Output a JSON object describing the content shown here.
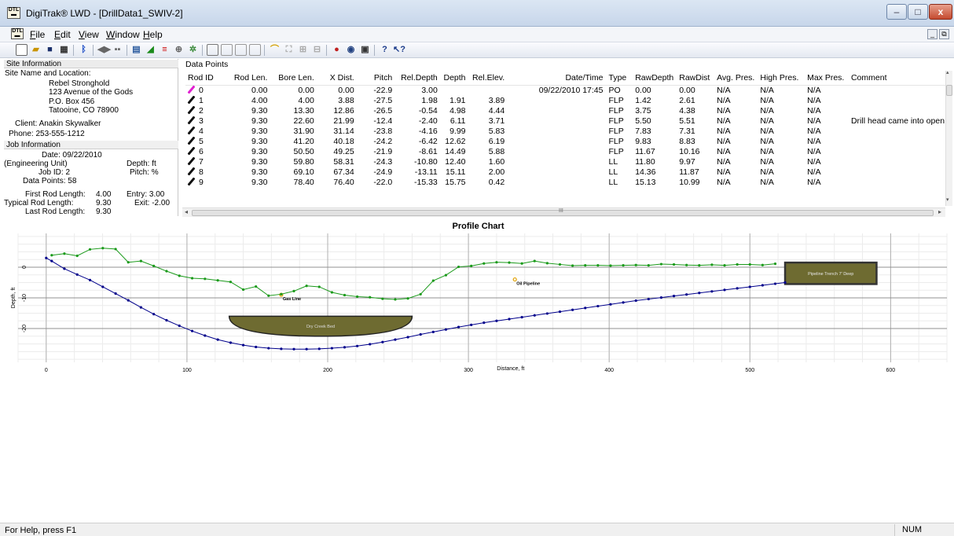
{
  "window": {
    "title": "DigiTrak® LWD - [DrillData1_SWIV-2]",
    "minimize": "–",
    "maximize": "□",
    "close": "x"
  },
  "menu": [
    "File",
    "Edit",
    "View",
    "Window",
    "Help"
  ],
  "menu_underline": [
    "F",
    "E",
    "V",
    "W",
    "H"
  ],
  "mdi": {
    "minimize": "_",
    "restore": "⧉"
  },
  "toolbar": {
    "icons": [
      "new-icon",
      "open-icon",
      "save-icon",
      "grid-icon",
      "bluetooth-icon",
      "profile-left-icon",
      "profile-right-icon",
      "report-icon",
      "plot-icon",
      "bar-icon",
      "target-icon",
      "settings-icon",
      "panel1-icon",
      "panel2-icon",
      "panel3-icon",
      "panel4-icon",
      "arch-icon",
      "zoom-fit-icon",
      "zoom-in-icon",
      "zoom-out-icon",
      "print-preview-icon",
      "print-setup-icon",
      "print-icon",
      "help-icon",
      "context-help-icon"
    ]
  },
  "site": {
    "section_label": "Site Information",
    "name_label": "Site Name and Location:",
    "name": "Rebel Stronghold",
    "address1": "123 Avenue of the Gods",
    "address2": "P.O. Box 456",
    "address3": "Tatooine, CO 78900",
    "client": "Client:  Anakin Skywalker",
    "phone": "Phone:  253-555-1212"
  },
  "job": {
    "section_label": "Job Information",
    "date": "Date:  09/22/2010",
    "unit": "(Engineering Unit)",
    "depth_unit": "Depth:  ft",
    "job_id": "Job ID:  2",
    "pitch_unit": "Pitch:  %",
    "data_points": "Data Points:  58",
    "first_rod_label": "First Rod Length:",
    "first_rod": "4.00",
    "entry": "Entry: 3.00",
    "typical_rod_label": "Typical Rod Length:",
    "typical_rod": "9.30",
    "exit": "Exit: -2.00",
    "last_rod_label": "Last Rod Length:",
    "last_rod": "9.30"
  },
  "data_points": {
    "title": "Data Points",
    "columns": [
      "Rod ID",
      "Rod Len.",
      "Bore Len.",
      "X Dist.",
      "Pitch",
      "Rel.Depth",
      "Depth",
      "Rel.Elev.",
      "Date/Time",
      "Type",
      "RawDepth",
      "RawDist",
      "Avg. Pres.",
      "High Pres.",
      "Max Pres.",
      "Comment"
    ],
    "rows": [
      [
        "0",
        "0.00",
        "0.00",
        "0.00",
        "-22.9",
        "3.00",
        "",
        "",
        "09/22/2010 17:45",
        "PO",
        "0.00",
        "0.00",
        "N/A",
        "N/A",
        "N/A",
        ""
      ],
      [
        "1",
        "4.00",
        "4.00",
        "3.88",
        "-27.5",
        "1.98",
        "1.91",
        "3.89",
        "",
        "FLP",
        "1.42",
        "2.61",
        "N/A",
        "N/A",
        "N/A",
        ""
      ],
      [
        "2",
        "9.30",
        "13.30",
        "12.86",
        "-26.5",
        "-0.54",
        "4.98",
        "4.44",
        "",
        "FLP",
        "3.75",
        "4.38",
        "N/A",
        "N/A",
        "N/A",
        ""
      ],
      [
        "3",
        "9.30",
        "22.60",
        "21.99",
        "-12.4",
        "-2.40",
        "6.11",
        "3.71",
        "",
        "FLP",
        "5.50",
        "5.51",
        "N/A",
        "N/A",
        "N/A",
        "Drill head came into open ."
      ],
      [
        "4",
        "9.30",
        "31.90",
        "31.14",
        "-23.8",
        "-4.16",
        "9.99",
        "5.83",
        "",
        "FLP",
        "7.83",
        "7.31",
        "N/A",
        "N/A",
        "N/A",
        ""
      ],
      [
        "5",
        "9.30",
        "41.20",
        "40.18",
        "-24.2",
        "-6.42",
        "12.62",
        "6.19",
        "",
        "FLP",
        "9.83",
        "8.83",
        "N/A",
        "N/A",
        "N/A",
        ""
      ],
      [
        "6",
        "9.30",
        "50.50",
        "49.25",
        "-21.9",
        "-8.61",
        "14.49",
        "5.88",
        "",
        "FLP",
        "11.67",
        "10.16",
        "N/A",
        "N/A",
        "N/A",
        ""
      ],
      [
        "7",
        "9.30",
        "59.80",
        "58.31",
        "-24.3",
        "-10.80",
        "12.40",
        "1.60",
        "",
        "LL",
        "11.80",
        "9.97",
        "N/A",
        "N/A",
        "N/A",
        ""
      ],
      [
        "8",
        "9.30",
        "69.10",
        "67.34",
        "-24.9",
        "-13.11",
        "15.11",
        "2.00",
        "",
        "LL",
        "14.36",
        "11.87",
        "N/A",
        "N/A",
        "N/A",
        ""
      ],
      [
        "9",
        "9.30",
        "78.40",
        "76.40",
        "-22.0",
        "-15.33",
        "15.75",
        "0.42",
        "",
        "LL",
        "15.13",
        "10.99",
        "N/A",
        "N/A",
        "N/A",
        ""
      ]
    ],
    "scroll_left": "◂",
    "scroll_right": "▸",
    "scroll_up": "▴",
    "scroll_down": "▾",
    "scroll_grip": "III"
  },
  "chart_data": {
    "type": "line",
    "title": "Profile Chart",
    "xlabel": "Distance, ft",
    "ylabel": "Depth, ft",
    "xlim": [
      -20,
      640
    ],
    "ylim": [
      -31,
      11
    ],
    "xticks": [
      0,
      100,
      200,
      300,
      400,
      500,
      600
    ],
    "yticks": [
      0,
      -10,
      -20
    ],
    "series": [
      {
        "color": "#00008b",
        "x": [
          0,
          3.9,
          12.9,
          22,
          31.1,
          40.2,
          49.3,
          58.3,
          67.3,
          76.4,
          85.5,
          94.6,
          103.7,
          112.8,
          121.9,
          131,
          140,
          149,
          158,
          167,
          176,
          185,
          194,
          203,
          212,
          221,
          230,
          239,
          248,
          257,
          266,
          275,
          284,
          293,
          302,
          311,
          320,
          329,
          338,
          347,
          356,
          365,
          374,
          383,
          392,
          401,
          410,
          419,
          428,
          437,
          446,
          455,
          464,
          473,
          482,
          491,
          500,
          509,
          518,
          525
        ],
        "y": [
          3,
          2,
          -0.5,
          -2.4,
          -4.2,
          -6.4,
          -8.6,
          -10.8,
          -13.1,
          -15.3,
          -17.3,
          -19.1,
          -20.8,
          -22.3,
          -23.6,
          -24.6,
          -25.4,
          -26,
          -26.4,
          -26.6,
          -26.7,
          -26.7,
          -26.6,
          -26.4,
          -26.1,
          -25.7,
          -25.1,
          -24.4,
          -23.6,
          -22.8,
          -21.9,
          -21.1,
          -20.3,
          -19.5,
          -18.8,
          -18.1,
          -17.5,
          -16.9,
          -16.3,
          -15.7,
          -15.1,
          -14.5,
          -13.9,
          -13.3,
          -12.7,
          -12.1,
          -11.5,
          -10.9,
          -10.4,
          -9.9,
          -9.4,
          -8.9,
          -8.4,
          -7.9,
          -7.4,
          -6.9,
          -6.4,
          -5.9,
          -5.4,
          -5
        ]
      },
      {
        "color": "#1a9a1a",
        "x": [
          3.9,
          12.9,
          22,
          31.1,
          40.2,
          49.3,
          58.3,
          67.3,
          76.4,
          85.5,
          94.6,
          103.7,
          112.8,
          121.9,
          131,
          140,
          149,
          158,
          167,
          176,
          185,
          194,
          203,
          212,
          221,
          230,
          239,
          248,
          257,
          266,
          275,
          284,
          293,
          302,
          311,
          320,
          329,
          338,
          347,
          356,
          365,
          374,
          383,
          392,
          401,
          410,
          419,
          428,
          437,
          446,
          455,
          464,
          473,
          482,
          491,
          500,
          509,
          518
        ],
        "y": [
          3.9,
          4.4,
          3.7,
          5.8,
          6.2,
          5.9,
          1.6,
          2,
          0.4,
          -1.3,
          -2.8,
          -3.6,
          -3.8,
          -4.3,
          -4.8,
          -7.3,
          -6.3,
          -9.3,
          -8.8,
          -7.8,
          -6.1,
          -6.4,
          -8.2,
          -9.1,
          -9.6,
          -9.8,
          -10.3,
          -10.5,
          -10.2,
          -8.8,
          -4.4,
          -2.6,
          0.1,
          0.4,
          1.2,
          1.6,
          1.5,
          1.2,
          2,
          1.3,
          0.9,
          0.5,
          0.6,
          0.6,
          0.5,
          0.6,
          0.7,
          0.6,
          1,
          0.9,
          0.7,
          0.6,
          0.8,
          0.6,
          0.9,
          0.9,
          0.7,
          1.1
        ]
      }
    ],
    "annotations": [
      {
        "label": "Dry Creek Bed",
        "x": [
          130,
          260
        ],
        "y": [
          -16,
          -22.5
        ],
        "shape": "bowl",
        "color": "#6e6b31"
      },
      {
        "label": "Pipeline Trench 7' Deep",
        "x": [
          525,
          590
        ],
        "y": [
          1.5,
          -5.5
        ],
        "shape": "rect",
        "color": "#6e6b31"
      },
      {
        "label": "Gas Line",
        "x": 167,
        "y": -9,
        "shape": "marker"
      },
      {
        "label": "Oil Pipeline",
        "x": 333,
        "y": -4,
        "shape": "marker"
      }
    ]
  },
  "status": {
    "help": "For Help, press F1",
    "num": "NUM"
  }
}
